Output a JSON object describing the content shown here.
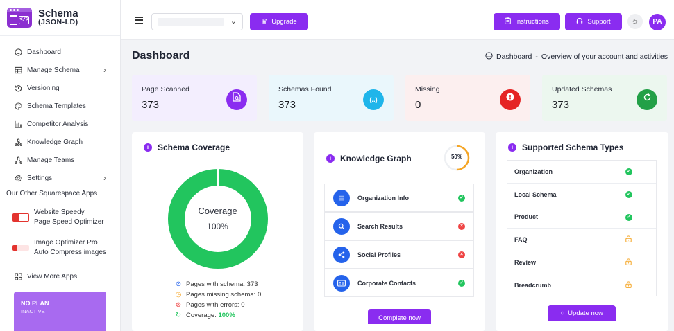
{
  "logo": {
    "name": "Schema",
    "sub": "(JSON-LD)"
  },
  "sidebar": {
    "items": [
      {
        "label": "Dashboard",
        "icon": "smile-icon"
      },
      {
        "label": "Manage Schema",
        "icon": "table-icon",
        "has_children": true
      },
      {
        "label": "Versioning",
        "icon": "history-icon"
      },
      {
        "label": "Schema Templates",
        "icon": "palette-icon"
      },
      {
        "label": "Competitor Analysis",
        "icon": "bar-chart-icon"
      },
      {
        "label": "Knowledge Graph",
        "icon": "graph-icon"
      },
      {
        "label": "Manage Teams",
        "icon": "team-icon"
      },
      {
        "label": "Settings",
        "icon": "gear-icon",
        "has_children": true
      }
    ],
    "other_apps_title": "Our Other Squarespace Apps",
    "apps": [
      {
        "line1": "Website Speedy",
        "line2": "Page Speed Optimizer"
      },
      {
        "line1": "Image Optimizer Pro",
        "line2": "Auto Compress images"
      }
    ],
    "view_more": "View More Apps",
    "plan": {
      "title": "NO PLAN",
      "status": "INACTIVE"
    }
  },
  "topbar": {
    "upgrade": "Upgrade",
    "instructions": "Instructions",
    "support": "Support",
    "avatar": "PA"
  },
  "page": {
    "title": "Dashboard",
    "breadcrumb_current": "Dashboard",
    "breadcrumb_sep": "-",
    "breadcrumb_desc": "Overview of your account and activities"
  },
  "stats": [
    {
      "label": "Page Scanned",
      "value": "373",
      "color": "#8a2cf0",
      "bg": "#f4efff",
      "icon": "file-search-icon"
    },
    {
      "label": "Schemas Found",
      "value": "373",
      "color": "#1fb5ea",
      "bg": "#eaf8fd",
      "icon": "code-braces-icon"
    },
    {
      "label": "Missing",
      "value": "0",
      "color": "#e52424",
      "bg": "#fdeeee",
      "icon": "alert-icon"
    },
    {
      "label": "Updated Schemas",
      "value": "373",
      "color": "#23a047",
      "bg": "#edf8f0",
      "icon": "refresh-icon"
    }
  ],
  "coverage": {
    "title": "Schema Coverage",
    "center_label": "Coverage",
    "center_value": "100%",
    "fraction": 1.0,
    "legend": {
      "with_schema": "Pages with schema: 373",
      "missing": "Pages missing schema: 0",
      "errors": "Pages with errors: 0",
      "coverage_label": "Coverage:",
      "coverage_value": "100%"
    }
  },
  "knowledge_graph": {
    "title": "Knowledge Graph",
    "progress": "50%",
    "progress_fraction": 0.5,
    "items": [
      {
        "label": "Organization Info",
        "ok": true,
        "icon": "document-icon"
      },
      {
        "label": "Search Results",
        "ok": false,
        "icon": "search-icon"
      },
      {
        "label": "Social Profiles",
        "ok": false,
        "icon": "share-icon"
      },
      {
        "label": "Corporate Contacts",
        "ok": true,
        "icon": "contact-card-icon"
      }
    ],
    "button": "Complete now"
  },
  "supported_types": {
    "title": "Supported Schema Types",
    "items": [
      {
        "label": "Organization",
        "status": "ok"
      },
      {
        "label": "Local Schema",
        "status": "ok"
      },
      {
        "label": "Product",
        "status": "ok"
      },
      {
        "label": "FAQ",
        "status": "locked"
      },
      {
        "label": "Review",
        "status": "locked"
      },
      {
        "label": "Breadcrumb",
        "status": "locked"
      }
    ],
    "button": "Update now"
  }
}
